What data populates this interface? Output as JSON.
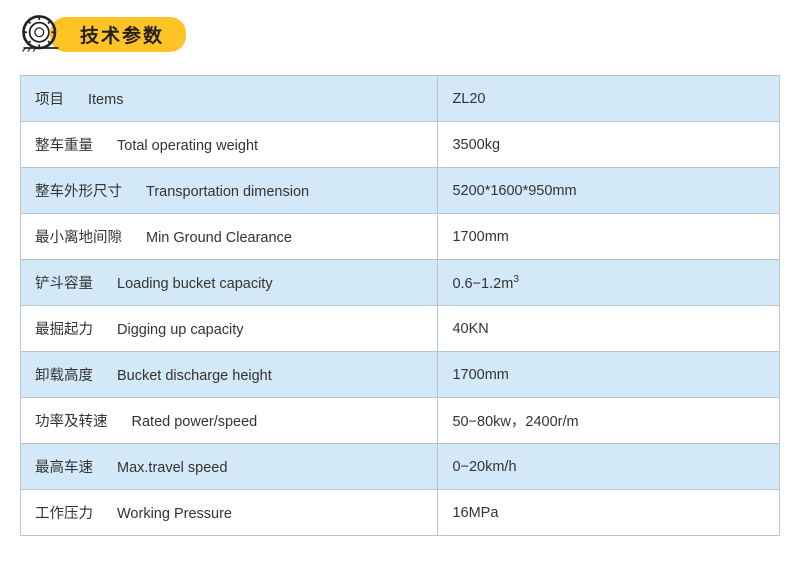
{
  "header": {
    "title": "技术参数",
    "icon_name": "tire-icon"
  },
  "table": {
    "border_color": "#b8c5d0",
    "row_colors": {
      "odd": "#d4e9f7",
      "even": "#ffffff"
    },
    "font_size": 14.5,
    "rows": [
      {
        "label_cn": "项目",
        "label_en": "Items",
        "value": "ZL20"
      },
      {
        "label_cn": "整车重量",
        "label_en": "Total operating weight",
        "value": "3500kg"
      },
      {
        "label_cn": "整车外形尺寸",
        "label_en": "Transportation dimension",
        "value": "5200*1600*950mm"
      },
      {
        "label_cn": "最小离地间隙",
        "label_en": "Min Ground Clearance",
        "value": "1700mm"
      },
      {
        "label_cn": "铲斗容量",
        "label_en": "Loading bucket capacity",
        "value": "0.6−1.2m",
        "value_sup": "3"
      },
      {
        "label_cn": "最掘起力",
        "label_en": "Digging up capacity",
        "value": "40KN"
      },
      {
        "label_cn": "卸载高度",
        "label_en": "Bucket discharge height",
        "value": "1700mm"
      },
      {
        "label_cn": "功率及转速",
        "label_en": "Rated power/speed",
        "value": "50−80kw，2400r/m"
      },
      {
        "label_cn": "最高车速",
        "label_en": "Max.travel speed",
        "value": "0−20km/h"
      },
      {
        "label_cn": "工作压力",
        "label_en": "Working Pressure",
        "value": "16MPa"
      }
    ]
  },
  "colors": {
    "badge_bg": "#fec324",
    "badge_text": "#231f20",
    "text": "#333333"
  }
}
